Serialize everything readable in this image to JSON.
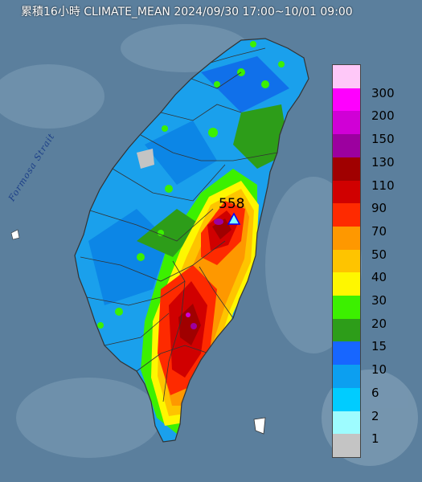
{
  "title": "累積16小時 CLIMATE_MEAN 2024/09/30 17:00~10/01 09:00",
  "sea_label": "Formosa Strait",
  "max_station": {
    "value": "558",
    "marker": "triangle-marker"
  },
  "legend": {
    "levels": [
      {
        "label": "300",
        "color": "#fec8f8"
      },
      {
        "label": "200",
        "color": "#fe00fe"
      },
      {
        "label": "150",
        "color": "#d000d6"
      },
      {
        "label": "130",
        "color": "#9c009f"
      },
      {
        "label": "110",
        "color": "#a00000"
      },
      {
        "label": "90",
        "color": "#d00000"
      },
      {
        "label": "70",
        "color": "#fe2a00"
      },
      {
        "label": "50",
        "color": "#fe9800"
      },
      {
        "label": "40",
        "color": "#fec400"
      },
      {
        "label": "30",
        "color": "#fef700"
      },
      {
        "label": "20",
        "color": "#3cf000"
      },
      {
        "label": "15",
        "color": "#2d9d19"
      },
      {
        "label": "10",
        "color": "#1766ff"
      },
      {
        "label": "6",
        "color": "#0c9ff0"
      },
      {
        "label": "2",
        "color": "#00ccff"
      },
      {
        "label": "1",
        "color": "#9efcff"
      },
      {
        "label": "",
        "color": "#c4c4c4"
      }
    ]
  },
  "colors": {
    "sea": "#5a7e9c",
    "island_base": "#1aa0ec",
    "boundary": "#333333"
  }
}
